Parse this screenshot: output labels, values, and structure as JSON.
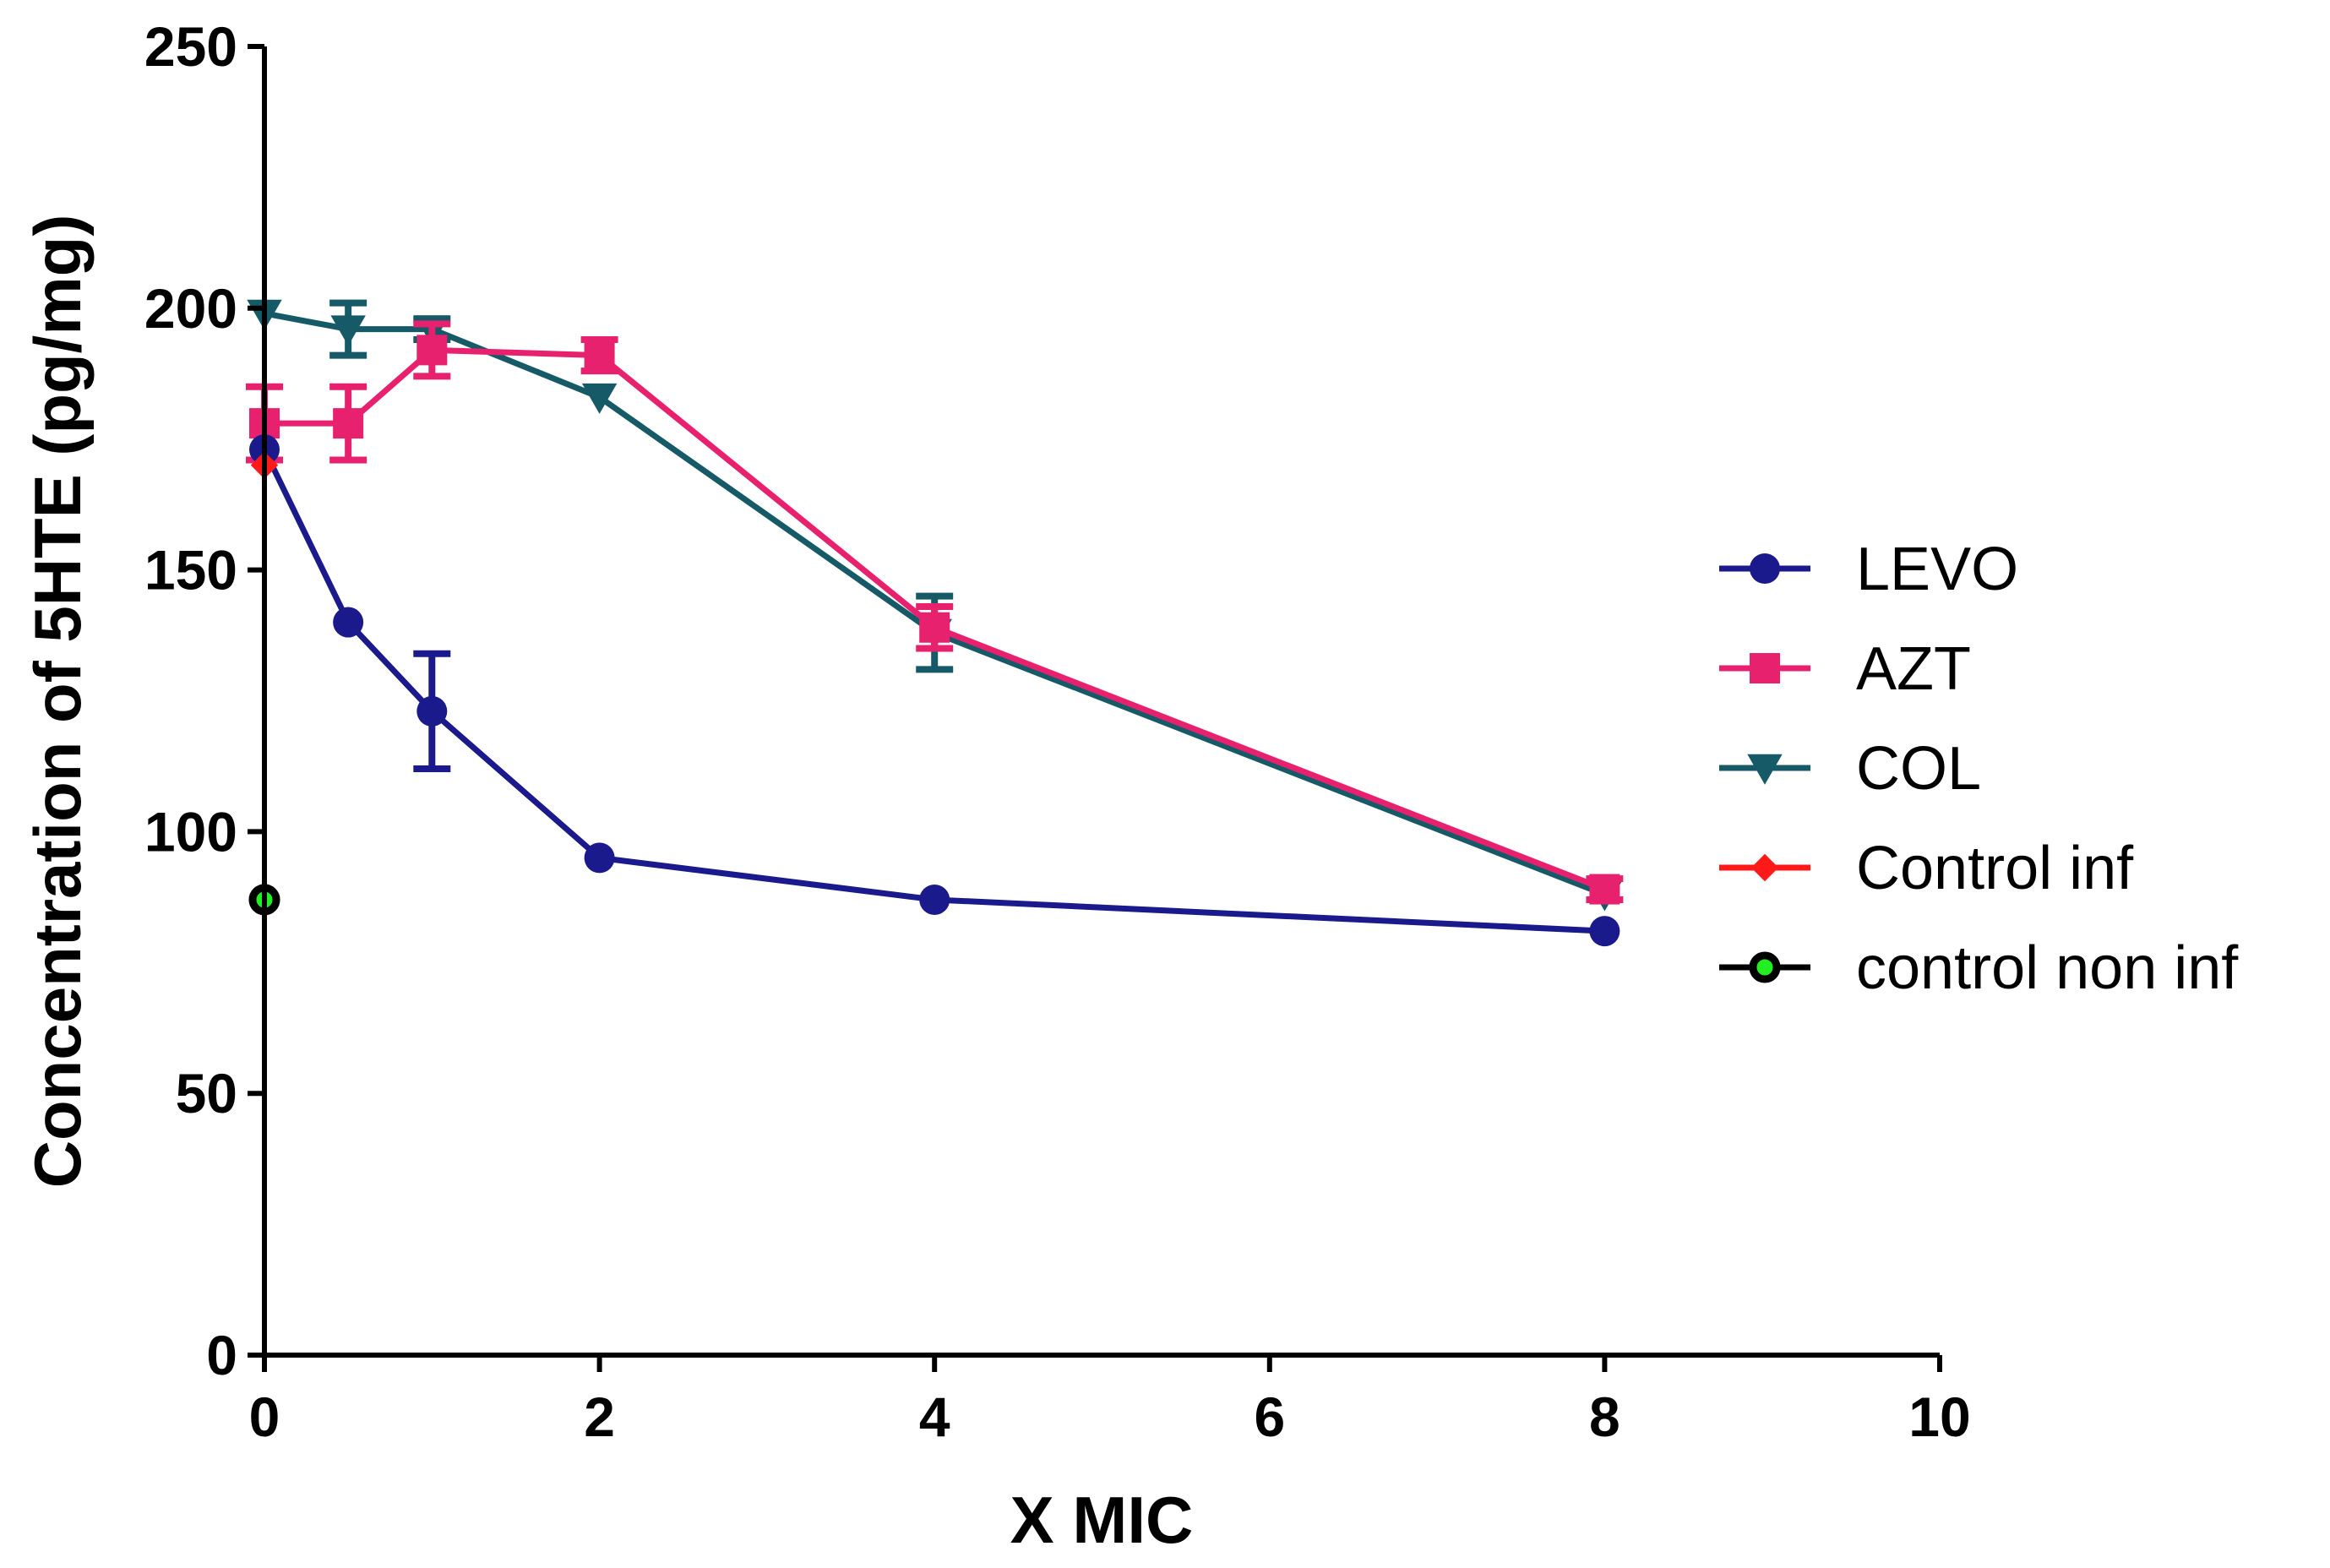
{
  "chart_data": {
    "type": "line",
    "title": "",
    "xlabel": "X MIC",
    "ylabel": "Concentration of 5HTE (pg/mg)",
    "xlim": [
      0,
      10
    ],
    "ylim": [
      0,
      250
    ],
    "xticks": [
      0,
      2,
      4,
      6,
      8,
      10
    ],
    "yticks": [
      0,
      50,
      100,
      150,
      200,
      250
    ],
    "xtick_labels": [
      "0",
      "2",
      "4",
      "6",
      "8",
      "10"
    ],
    "ytick_labels": [
      "0",
      "50",
      "100",
      "150",
      "200",
      "250"
    ],
    "legend_position": "right",
    "series": [
      {
        "name": "LEVO",
        "color": "#1a1a8c",
        "marker": "circle",
        "points": [
          {
            "x": 0,
            "y": 173,
            "err": 0
          },
          {
            "x": 0.5,
            "y": 140,
            "err": 0
          },
          {
            "x": 1,
            "y": 123,
            "err": 11
          },
          {
            "x": 2,
            "y": 95,
            "err": 0
          },
          {
            "x": 4,
            "y": 87,
            "err": 0
          },
          {
            "x": 8,
            "y": 81,
            "err": 0
          }
        ]
      },
      {
        "name": "AZT",
        "color": "#e8216f",
        "marker": "square",
        "points": [
          {
            "x": 0,
            "y": 178,
            "err": 7
          },
          {
            "x": 0.5,
            "y": 178,
            "err": 7
          },
          {
            "x": 1,
            "y": 192,
            "err": 5
          },
          {
            "x": 2,
            "y": 191,
            "err": 3
          },
          {
            "x": 4,
            "y": 139,
            "err": 4
          },
          {
            "x": 8,
            "y": 89,
            "err": 2
          }
        ]
      },
      {
        "name": "COL",
        "color": "#155a66",
        "marker": "triangle-down",
        "points": [
          {
            "x": 0,
            "y": 199,
            "err": 0
          },
          {
            "x": 0.5,
            "y": 196,
            "err": 5
          },
          {
            "x": 1,
            "y": 196,
            "err": 2
          },
          {
            "x": 2,
            "y": 183,
            "err": 0
          },
          {
            "x": 4,
            "y": 138,
            "err": 7
          },
          {
            "x": 8,
            "y": 88,
            "err": 0
          }
        ]
      },
      {
        "name": "Control inf",
        "color": "#ff1a1a",
        "marker": "diamond",
        "points": [
          {
            "x": 0,
            "y": 170,
            "err": 0
          }
        ]
      },
      {
        "name": "control non inf",
        "color": "#000000",
        "fill": "#22ee22",
        "marker": "circle-ring",
        "points": [
          {
            "x": 0,
            "y": 87,
            "err": 0
          }
        ]
      }
    ]
  }
}
